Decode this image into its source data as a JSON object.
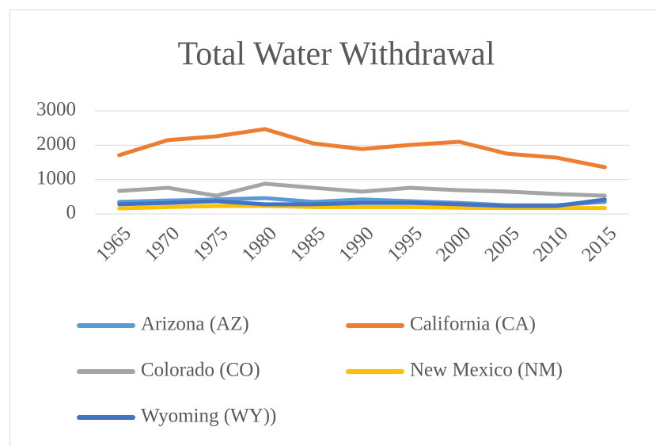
{
  "chart_data": {
    "type": "line",
    "title": "Total Water Withdrawal",
    "categories": [
      "1965",
      "1970",
      "1975",
      "1980",
      "1985",
      "1990",
      "1995",
      "2000",
      "2005",
      "2010",
      "2015"
    ],
    "series": [
      {
        "name": "Arizona (AZ)",
        "color": "#5b9bd5",
        "values": [
          350,
          390,
          420,
          460,
          350,
          420,
          370,
          320,
          250,
          250,
          350
        ]
      },
      {
        "name": "California (CA)",
        "color": "#ed7d31",
        "values": [
          1710,
          2150,
          2260,
          2470,
          2050,
          1890,
          2010,
          2100,
          1750,
          1640,
          1360
        ]
      },
      {
        "name": "Colorado (CO)",
        "color": "#a5a5a5",
        "values": [
          670,
          760,
          530,
          880,
          760,
          650,
          760,
          690,
          650,
          580,
          530
        ]
      },
      {
        "name": "New Mexico (NM)",
        "color": "#ffc000",
        "values": [
          160,
          200,
          230,
          230,
          200,
          200,
          200,
          180,
          170,
          170,
          170
        ]
      },
      {
        "name": "Wyoming (WY))",
        "color": "#4472c4",
        "values": [
          280,
          320,
          370,
          280,
          280,
          320,
          320,
          280,
          230,
          230,
          420
        ]
      }
    ],
    "ylim": [
      0,
      3000
    ],
    "yticks": [
      0,
      1000,
      2000,
      3000
    ],
    "grid": true,
    "legend": "bottom"
  }
}
